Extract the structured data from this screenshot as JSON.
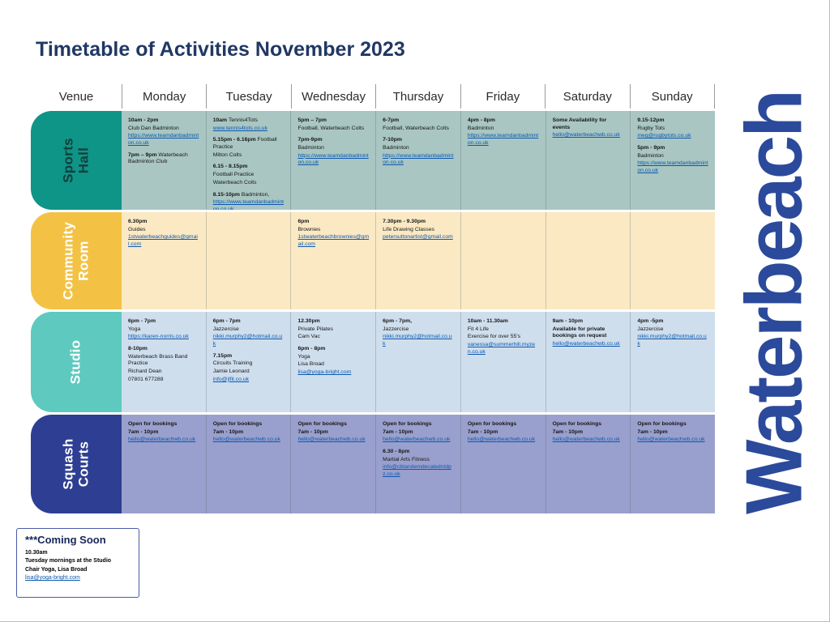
{
  "page": {
    "title": "Timetable of Activities November 2023",
    "brand": "Waterbeach"
  },
  "colors": {
    "title": "#203864",
    "brand": "#2b4a9b",
    "link": "#0a58b0",
    "header_separator": "#9a9a9a"
  },
  "table": {
    "headers": [
      "Venue",
      "Monday",
      "Tuesday",
      "Wednesday",
      "Thursday",
      "Friday",
      "Saturday",
      "Sunday"
    ],
    "rows": [
      {
        "name": "sports-hall",
        "venue": "Sports Hall",
        "label": "Sports Hall",
        "tab_color": "#0f9488",
        "cell_color": "#a9c6c2",
        "label_color": "#11403a",
        "cells": [
          [
            [
              [
                "b",
                "10am - 2pm"
              ]
            ],
            [
              [
                "n",
                "Club Dan Badminton"
              ]
            ],
            [
              [
                "l",
                "https://www.teamdanbadminton.co.uk"
              ]
            ],
            [],
            [
              [
                "b",
                "7pm – 9pm "
              ],
              [
                "n",
                "Waterbeach Badminton Club"
              ]
            ]
          ],
          [
            [
              [
                "b",
                "10am "
              ],
              [
                "n",
                "Tennis4Tots"
              ]
            ],
            [
              [
                "l",
                "www.tennis4tots.co.uk"
              ]
            ],
            [],
            [
              [
                "b",
                "5.15pm - 6.16pm "
              ],
              [
                "n",
                "Football Practice"
              ]
            ],
            [
              [
                "n",
                "Milton Colts"
              ]
            ],
            [],
            [
              [
                "b",
                "6.15 - 8.15pm"
              ]
            ],
            [
              [
                "n",
                "Football Practice"
              ]
            ],
            [
              [
                "n",
                "Waterbeach Colts"
              ]
            ],
            [],
            [
              [
                "b",
                "8.15-10pm "
              ],
              [
                "n",
                "Badminton,"
              ]
            ],
            [
              [
                "l",
                "https://www.teamdanbadminton.co.uk"
              ]
            ]
          ],
          [
            [
              [
                "b",
                "5pm – 7pm"
              ]
            ],
            [
              [
                "n",
                "Football, Waterbeach Colts"
              ]
            ],
            [],
            [
              [
                "b",
                "7pm-9pm"
              ]
            ],
            [
              [
                "n",
                "Badminton"
              ]
            ],
            [
              [
                "l",
                "https://www.teamdanbadminton.co.uk"
              ]
            ]
          ],
          [
            [
              [
                "b",
                "6-7pm"
              ]
            ],
            [
              [
                "n",
                "Football, Waterbeach Colts"
              ]
            ],
            [],
            [
              [
                "b",
                "7-10pm"
              ]
            ],
            [
              [
                "n",
                "Badminton"
              ]
            ],
            [
              [
                "l",
                "https://www.teamdanbadminton.co.uk"
              ]
            ]
          ],
          [
            [
              [
                "b",
                "4pm - 8pm"
              ]
            ],
            [
              [
                "n",
                "Badminton"
              ]
            ],
            [
              [
                "l",
                "https://www.teamdanbadminton.co.uk"
              ]
            ]
          ],
          [
            [
              [
                "b",
                "Some Availability for events"
              ]
            ],
            [
              [
                "l",
                "hello@waterbeachwb.co.uk"
              ]
            ]
          ],
          [
            [
              [
                "b",
                "9.15-12pm"
              ]
            ],
            [
              [
                "n",
                "Rugby Tots"
              ]
            ],
            [
              [
                "l",
                "meg@rugbytots.co.uk"
              ]
            ],
            [],
            [
              [
                "b",
                "5pm - 9pm"
              ]
            ],
            [
              [
                "n",
                "Badminton"
              ]
            ],
            [
              [
                "l",
                "https://www.teamdanbadminton.co.uk"
              ]
            ]
          ]
        ]
      },
      {
        "name": "community-room",
        "venue": "Community Room",
        "label": "Community\nRoom",
        "tab_color": "#f3c245",
        "cell_color": "#fbe9c4",
        "label_color": "#ffffff",
        "cells": [
          [
            [
              [
                "b",
                "6.30pm"
              ]
            ],
            [
              [
                "n",
                "Guides"
              ]
            ],
            [
              [
                "l",
                "1stwaterbeachguides@gmail.com"
              ]
            ]
          ],
          [],
          [
            [
              [
                "b",
                "6pm"
              ]
            ],
            [
              [
                "n",
                "Brownies"
              ]
            ],
            [
              [
                "l",
                "1stwaterbeachbrownies@gmail.com"
              ]
            ]
          ],
          [
            [
              [
                "b",
                "7.30pm - 9.30pm"
              ]
            ],
            [
              [
                "n",
                "Life Drawing Classes"
              ]
            ],
            [
              [
                "l",
                "petersuttonartist@gmail.com"
              ]
            ]
          ],
          [],
          [],
          []
        ]
      },
      {
        "name": "studio",
        "venue": "Studio",
        "label": "Studio",
        "tab_color": "#5ec9bf",
        "cell_color": "#cfdeed",
        "label_color": "#ffffff",
        "cells": [
          [
            [
              [
                "b",
                "6pm - 7pm"
              ]
            ],
            [
              [
                "n",
                "Yoga"
              ]
            ],
            [
              [
                "l",
                "https://karen-norris.co.uk"
              ]
            ],
            [],
            [
              [
                "b",
                "8-10pm"
              ]
            ],
            [
              [
                "n",
                "Waterbeach Brass Band Practice"
              ]
            ],
            [
              [
                "n",
                "Richard Dean"
              ]
            ],
            [
              [
                "n",
                "07801 677288"
              ]
            ]
          ],
          [
            [
              [
                "b",
                "6pm - 7pm"
              ]
            ],
            [
              [
                "n",
                "Jazzercise"
              ]
            ],
            [
              [
                "l",
                "nikki.murphy2@hotmail.co.uk"
              ]
            ],
            [],
            [
              [
                "b",
                "7.15pm"
              ]
            ],
            [
              [
                "n",
                "Circuits Training"
              ]
            ],
            [
              [
                "n",
                "Jamie Leonard"
              ]
            ],
            [
              [
                "l",
                "info@jlfit.co.uk"
              ]
            ]
          ],
          [
            [
              [
                "b",
                "12.30pm"
              ]
            ],
            [
              [
                "n",
                "Private Pilates"
              ]
            ],
            [
              [
                "n",
                "Cam Vac"
              ]
            ],
            [],
            [
              [
                "b",
                "6pm - 8pm"
              ]
            ],
            [
              [
                "n",
                "Yoga"
              ]
            ],
            [
              [
                "n",
                "Lisa Broad"
              ]
            ],
            [
              [
                "l",
                "lisa@yoga-bright.com"
              ]
            ]
          ],
          [
            [
              [
                "b",
                "6pm - 7pm,"
              ]
            ],
            [
              [
                "n",
                "Jazzercise"
              ]
            ],
            [
              [
                "l",
                "nikki.murphy2@hotmail.co.uk"
              ]
            ]
          ],
          [
            [
              [
                "b",
                "10am - 11.30am"
              ]
            ],
            [
              [
                "n",
                "Fit 4 Life"
              ]
            ],
            [
              [
                "n",
                "Exercise for over 55's"
              ]
            ],
            [
              [
                "l",
                "vanessa@summerhill.myzen.co.uk"
              ]
            ]
          ],
          [
            [
              [
                "b",
                "9am - 10pm"
              ]
            ],
            [
              [
                "b",
                "Available for private bookings on request"
              ]
            ],
            [
              [
                "l",
                "hello@waterbeachwb.co.uk"
              ]
            ]
          ],
          [
            [
              [
                "b",
                "4pm -5pm"
              ]
            ],
            [
              [
                "n",
                "Jazzercise"
              ]
            ],
            [
              [
                "l",
                "nikki.murphy2@hotmail.co.uk"
              ]
            ]
          ]
        ]
      },
      {
        "name": "squash-courts",
        "venue": "Squash Courts",
        "label": "Squash\nCourts",
        "tab_color": "#2e3f93",
        "cell_color": "#9aa0cd",
        "label_color": "#ffffff",
        "cells": [
          [
            [
              [
                "b",
                "Open for bookings"
              ]
            ],
            [
              [
                "b",
                "7am - 10pm"
              ]
            ],
            [
              [
                "l",
                "hello@waterbeachwb.co.uk"
              ]
            ]
          ],
          [
            [
              [
                "b",
                "Open for bookings"
              ]
            ],
            [
              [
                "b",
                "7am - 10pm"
              ]
            ],
            [
              [
                "l",
                "hello@waterbeachwb.co.uk"
              ]
            ]
          ],
          [
            [
              [
                "b",
                "Open for bookings"
              ]
            ],
            [
              [
                "b",
                "7am - 10pm"
              ]
            ],
            [
              [
                "l",
                "hello@waterbeachwb.co.uk"
              ]
            ]
          ],
          [
            [
              [
                "b",
                "Open for bookings"
              ]
            ],
            [
              [
                "b",
                "7am - 10pm"
              ]
            ],
            [
              [
                "l",
                "hello@waterbeachwb.co.uk"
              ]
            ],
            [],
            [
              [
                "b",
                "6.30 - 8pm"
              ]
            ],
            [
              [
                "n",
                "Martial Arts Fitness"
              ]
            ],
            [
              [
                "l",
                "info@cbtandemdecaledntdpz.co.uk"
              ]
            ]
          ],
          [
            [
              [
                "b",
                "Open for bookings"
              ]
            ],
            [
              [
                "b",
                "7am - 10pm"
              ]
            ],
            [
              [
                "l",
                "hello@waterbeachwb.co.uk"
              ]
            ]
          ],
          [
            [
              [
                "b",
                "Open for bookings"
              ]
            ],
            [
              [
                "b",
                "7am - 10pm"
              ]
            ],
            [
              [
                "l",
                "hello@waterbeachwb.co.uk"
              ]
            ]
          ],
          [
            [
              [
                "b",
                "Open for bookings"
              ]
            ],
            [
              [
                "b",
                "7am - 10pm"
              ]
            ],
            [
              [
                "l",
                "hello@waterbeachwb.co.uk"
              ]
            ]
          ]
        ]
      }
    ]
  },
  "coming_soon": {
    "title": "***Coming Soon",
    "lines": [
      [
        "b",
        "10.30am"
      ],
      [
        "b",
        "Tuesday mornings at the Studio"
      ],
      [
        "b",
        "Chair Yoga, Lisa Broad"
      ],
      [
        "l",
        "lisa@yoga-bright.com"
      ]
    ]
  }
}
